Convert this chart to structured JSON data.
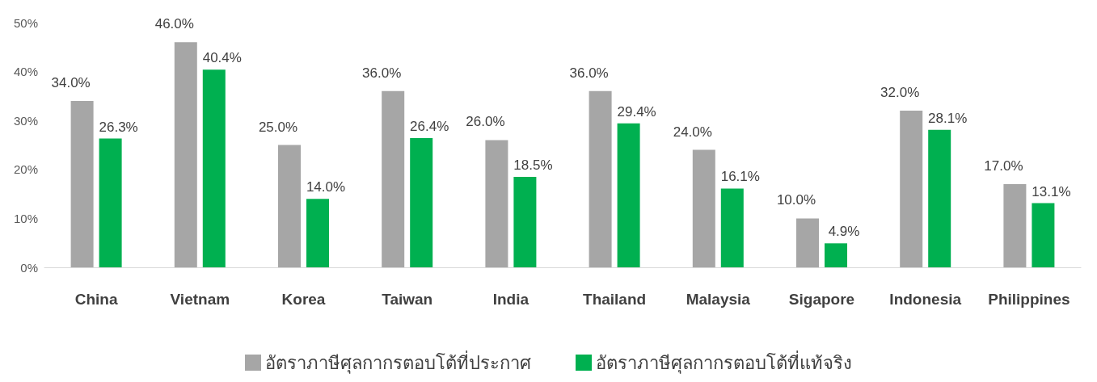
{
  "chart_data": {
    "type": "bar",
    "categories": [
      "China",
      "Vietnam",
      "Korea",
      "Taiwan",
      "India",
      "Thailand",
      "Malaysia",
      "Sigapore",
      "Indonesia",
      "Philippines"
    ],
    "series": [
      {
        "name": "อัตราภาษีศุลกากรตอบโต้ที่ประกาศ",
        "color": "#a6a6a6",
        "values": [
          34.0,
          46.0,
          25.0,
          36.0,
          26.0,
          36.0,
          24.0,
          10.0,
          32.0,
          17.0
        ],
        "value_labels": [
          "34.0%",
          "46.0%",
          "25.0%",
          "36.0%",
          "26.0%",
          "36.0%",
          "24.0%",
          "10.0%",
          "32.0%",
          "17.0%"
        ]
      },
      {
        "name": "อัตราภาษีศุลกากรตอบโต้ที่แท้จริง",
        "color": "#00b050",
        "values": [
          26.3,
          40.4,
          14.0,
          26.4,
          18.5,
          29.4,
          16.1,
          4.9,
          28.1,
          13.1
        ],
        "value_labels": [
          "26.3%",
          "40.4%",
          "14.0%",
          "26.4%",
          "18.5%",
          "29.4%",
          "16.1%",
          "4.9%",
          "28.1%",
          "13.1%"
        ]
      }
    ],
    "ylim": [
      0,
      50
    ],
    "yticks": [
      {
        "value": 0,
        "label": "0%"
      },
      {
        "value": 10,
        "label": "10%"
      },
      {
        "value": 20,
        "label": "20%"
      },
      {
        "value": 30,
        "label": "30%"
      },
      {
        "value": 40,
        "label": "40%"
      },
      {
        "value": 50,
        "label": "50%"
      }
    ],
    "grid": false,
    "legend": "bottom"
  }
}
